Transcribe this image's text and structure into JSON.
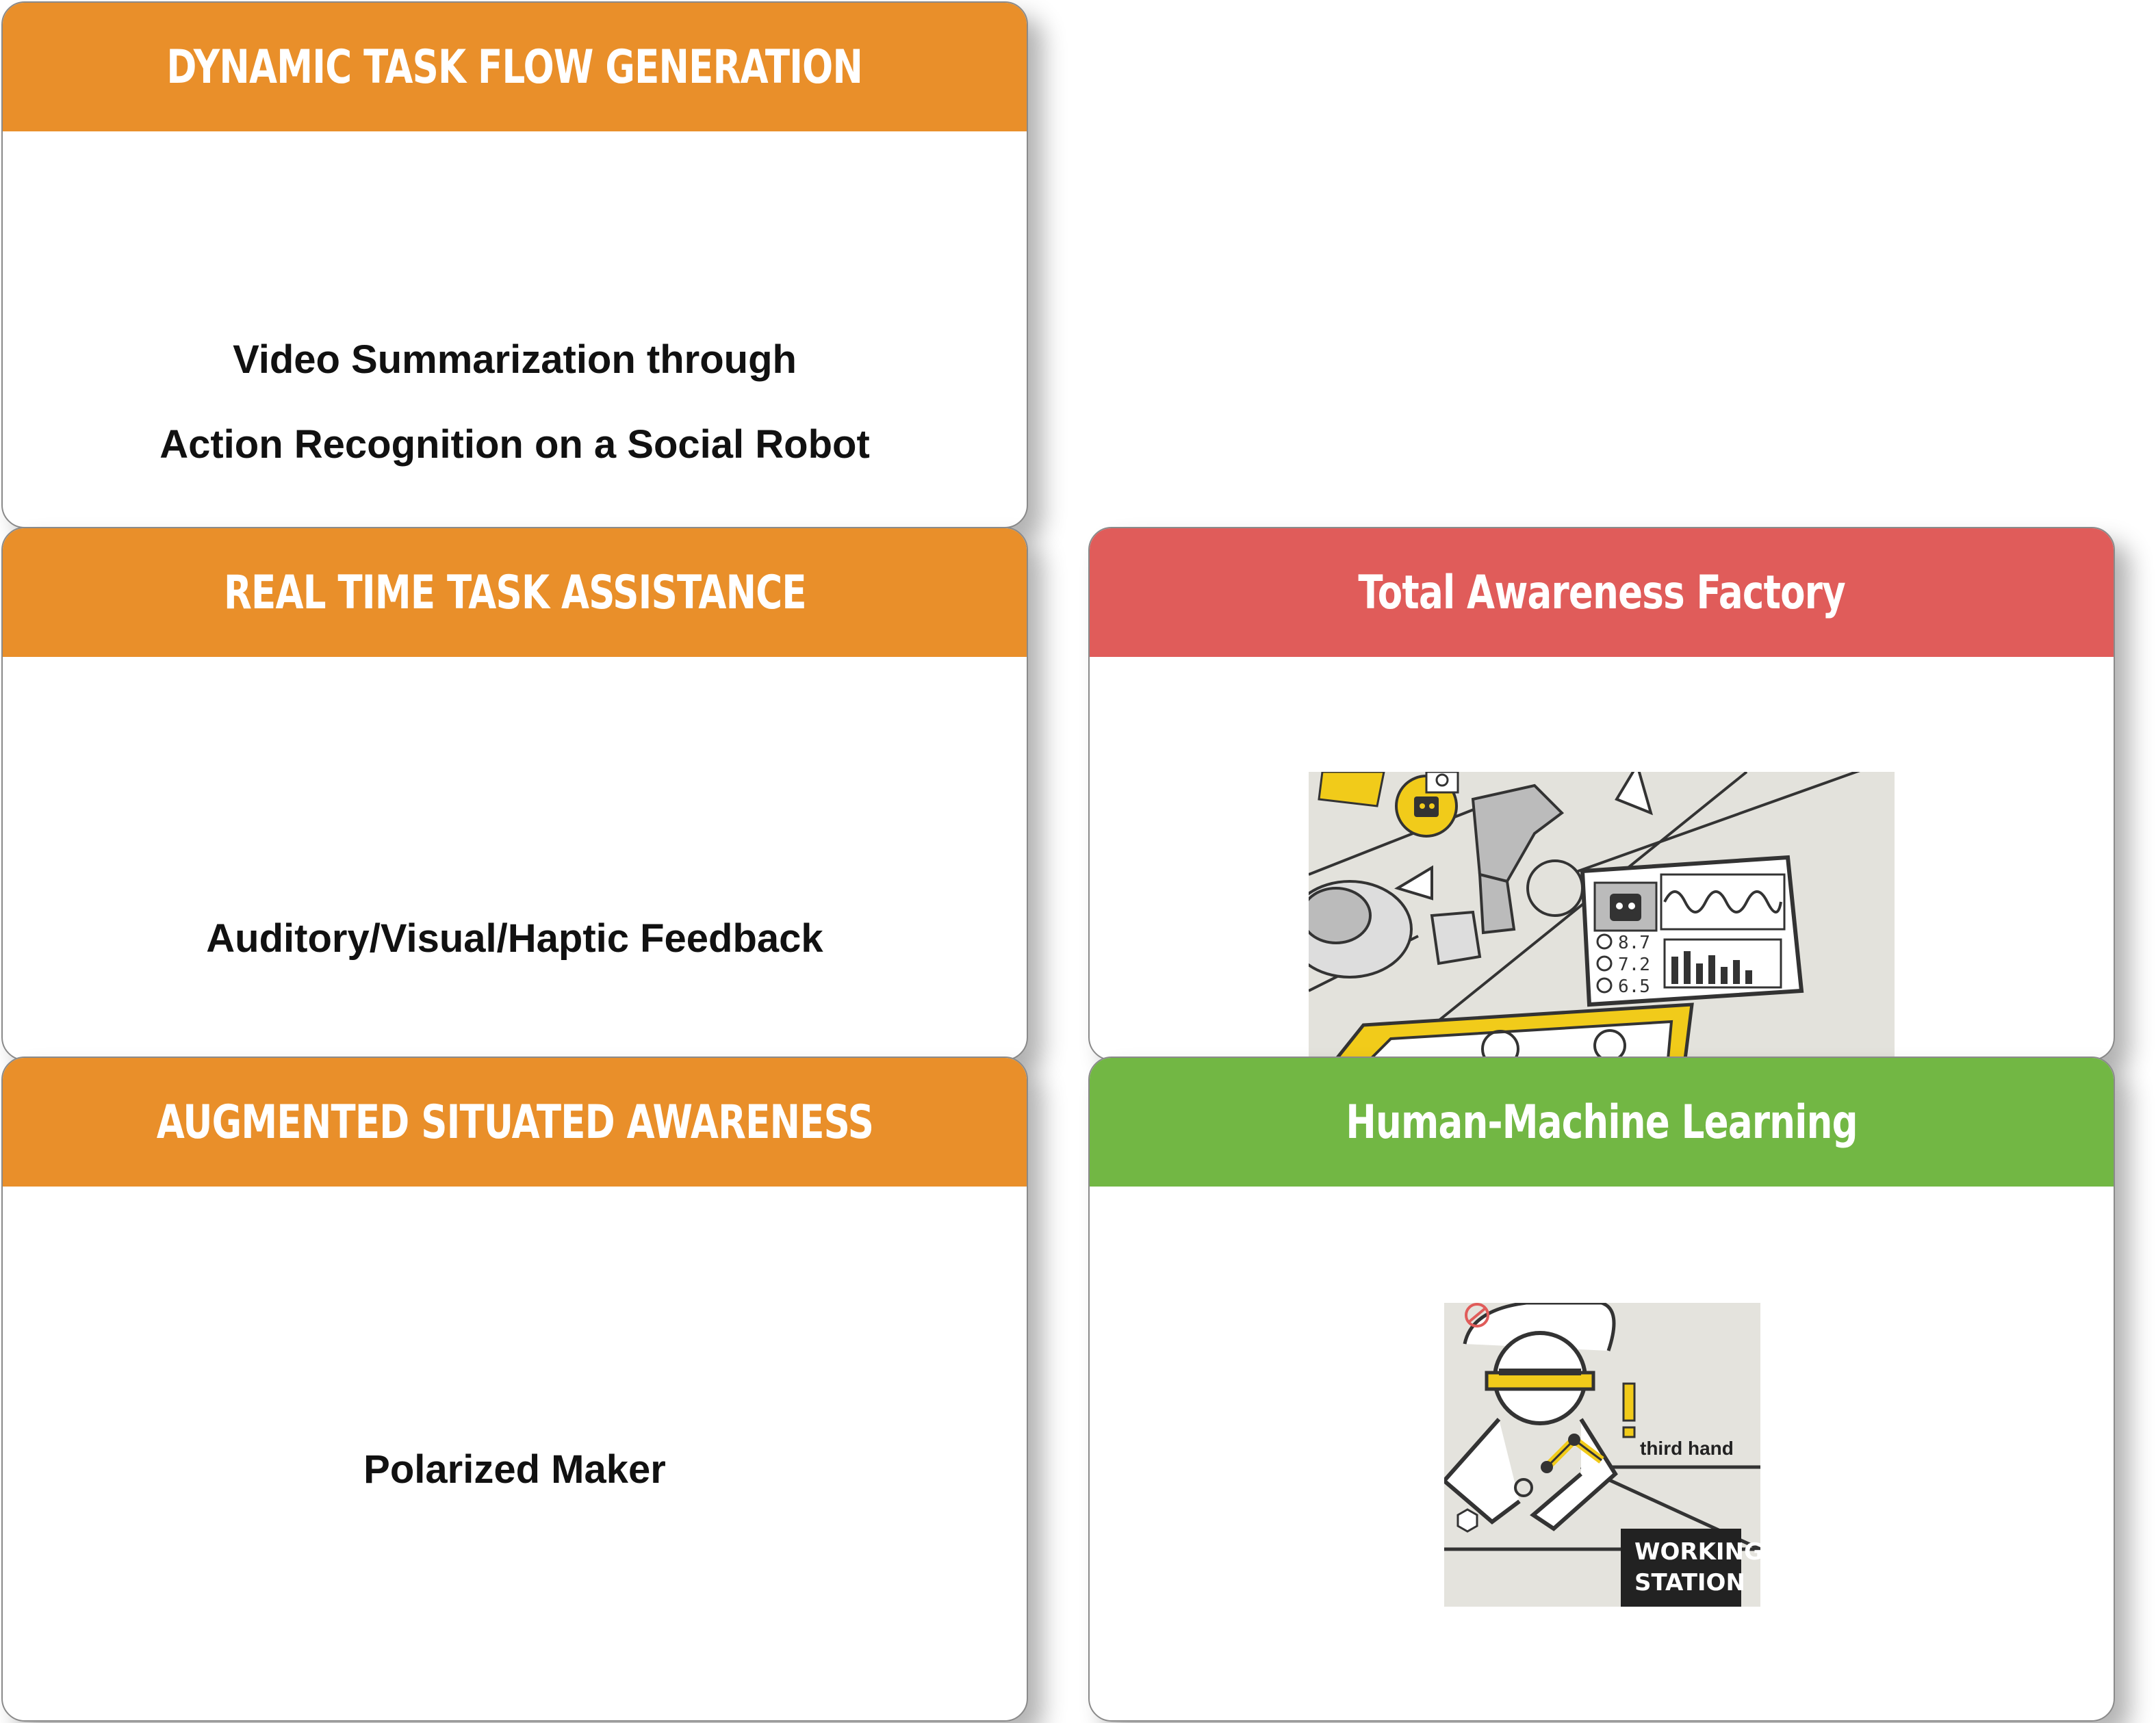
{
  "cards": {
    "dynamic_task_flow": {
      "title": "DYNAMIC TASK FLOW GENERATION",
      "line1": "Video Summarization through",
      "line2": "Action Recognition on a Social Robot"
    },
    "real_time_assistance": {
      "title": "REAL TIME TASK ASSISTANCE",
      "text": "Auditory/Visual/Haptic Feedback"
    },
    "augmented_awareness": {
      "title": "AUGMENTED SITUATED AWARENESS",
      "text": "Polarized Maker"
    },
    "total_awareness": {
      "title": "Total Awareness Factory",
      "readings": [
        "8.7",
        "7.2",
        "6.5"
      ]
    },
    "human_machine": {
      "title": "Human-Machine Learning",
      "label": "third hand",
      "station_line1": "WORKING",
      "station_line2": "STATION"
    }
  },
  "colors": {
    "orange": "#e98f2a",
    "red": "#e05c5a",
    "green": "#72b744",
    "sketch_yellow": "#f1cb1a"
  }
}
